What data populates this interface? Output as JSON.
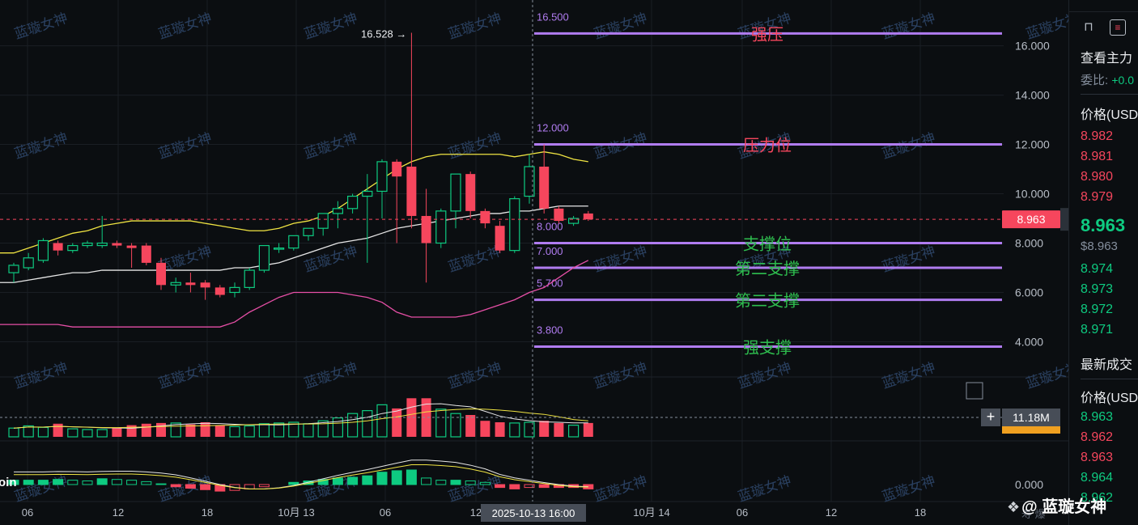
{
  "watermark": {
    "text": "蓝璇女神",
    "logo_text": "@ 蓝璇女神",
    "logo_icon": "hexagon-diamond-icon"
  },
  "legend_fragment": "oin",
  "footer_fragment": "寿 爆",
  "colors": {
    "up": "#0ecb81",
    "down": "#f6465d",
    "ma_fast": "#f0e442",
    "ma_mid": "#e6e6e6",
    "ma_slow": "#e64fa6",
    "level_line": "#b07cf0",
    "level_text_red": "#f6465d",
    "level_text_green": "#2ebd4e",
    "price_tag": "#f6465d"
  },
  "chart_data": [
    {
      "type": "candlestick",
      "title": "",
      "price_axis_ticks": [
        "16.000",
        "14.000",
        "12.000",
        "10.000",
        "8.000",
        "6.000",
        "4.000"
      ],
      "price_axis_values": [
        16,
        14,
        12,
        10,
        8,
        6,
        4
      ],
      "ylim": [
        2.9,
        17.2
      ],
      "time_axis_ticks": [
        "06",
        "12",
        "18",
        "10月 13",
        "06",
        "12",
        "10月 14",
        "06",
        "12",
        "18"
      ],
      "crosshair_label": "2025-10-13 16:00",
      "grid": true,
      "max_annotation": "16.528 →",
      "current_price": {
        "value": 8.963,
        "label": "8.963"
      },
      "candles": [
        {
          "o": 6.8,
          "h": 7.2,
          "l": 6.4,
          "c": 7.1
        },
        {
          "o": 7.0,
          "h": 7.6,
          "l": 6.9,
          "c": 7.4
        },
        {
          "o": 7.3,
          "h": 8.2,
          "l": 7.2,
          "c": 8.1
        },
        {
          "o": 8.0,
          "h": 8.1,
          "l": 7.5,
          "c": 7.7
        },
        {
          "o": 7.7,
          "h": 8.0,
          "l": 7.6,
          "c": 7.9
        },
        {
          "o": 7.9,
          "h": 8.1,
          "l": 7.8,
          "c": 8.0
        },
        {
          "o": 7.9,
          "h": 9.1,
          "l": 7.8,
          "c": 8.0
        },
        {
          "o": 8.0,
          "h": 8.1,
          "l": 7.8,
          "c": 7.9
        },
        {
          "o": 7.9,
          "h": 8.0,
          "l": 7.0,
          "c": 7.8
        },
        {
          "o": 7.9,
          "h": 8.0,
          "l": 7.1,
          "c": 7.2
        },
        {
          "o": 7.2,
          "h": 7.4,
          "l": 6.1,
          "c": 6.3
        },
        {
          "o": 6.3,
          "h": 6.6,
          "l": 6.0,
          "c": 6.4
        },
        {
          "o": 6.4,
          "h": 6.8,
          "l": 6.0,
          "c": 6.3
        },
        {
          "o": 6.4,
          "h": 6.5,
          "l": 5.7,
          "c": 6.2
        },
        {
          "o": 6.2,
          "h": 6.3,
          "l": 5.8,
          "c": 5.9
        },
        {
          "o": 6.0,
          "h": 6.4,
          "l": 5.8,
          "c": 6.2
        },
        {
          "o": 6.2,
          "h": 7.0,
          "l": 6.1,
          "c": 6.9
        },
        {
          "o": 6.9,
          "h": 7.9,
          "l": 6.8,
          "c": 7.9
        },
        {
          "o": 7.8,
          "h": 8.0,
          "l": 7.6,
          "c": 7.8
        },
        {
          "o": 7.8,
          "h": 8.3,
          "l": 7.7,
          "c": 8.3
        },
        {
          "o": 8.3,
          "h": 8.6,
          "l": 8.1,
          "c": 8.6
        },
        {
          "o": 8.6,
          "h": 9.2,
          "l": 8.3,
          "c": 9.2
        },
        {
          "o": 9.2,
          "h": 9.7,
          "l": 8.6,
          "c": 9.4
        },
        {
          "o": 9.4,
          "h": 10.0,
          "l": 9.2,
          "c": 9.9
        },
        {
          "o": 9.9,
          "h": 10.8,
          "l": 7.2,
          "c": 10.1
        },
        {
          "o": 10.1,
          "h": 11.4,
          "l": 9.0,
          "c": 11.3
        },
        {
          "o": 11.3,
          "h": 11.4,
          "l": 8.0,
          "c": 10.7
        },
        {
          "o": 11.1,
          "h": 16.528,
          "l": 8.6,
          "c": 9.1
        },
        {
          "o": 9.1,
          "h": 10.2,
          "l": 6.4,
          "c": 8.0
        },
        {
          "o": 8.0,
          "h": 9.4,
          "l": 7.8,
          "c": 9.3
        },
        {
          "o": 9.3,
          "h": 10.8,
          "l": 8.6,
          "c": 10.8
        },
        {
          "o": 10.8,
          "h": 10.9,
          "l": 9.0,
          "c": 9.3
        },
        {
          "o": 9.3,
          "h": 9.4,
          "l": 8.6,
          "c": 8.8
        },
        {
          "o": 8.7,
          "h": 8.9,
          "l": 7.6,
          "c": 7.7
        },
        {
          "o": 7.7,
          "h": 9.9,
          "l": 7.6,
          "c": 9.8
        },
        {
          "o": 9.9,
          "h": 11.6,
          "l": 9.6,
          "c": 11.1
        },
        {
          "o": 11.1,
          "h": 12.0,
          "l": 9.2,
          "c": 9.4
        },
        {
          "o": 9.4,
          "h": 9.5,
          "l": 8.8,
          "c": 8.9
        },
        {
          "o": 8.8,
          "h": 9.1,
          "l": 8.7,
          "c": 9.0
        },
        {
          "o": 9.2,
          "h": 9.3,
          "l": 8.9,
          "c": 8.963
        }
      ],
      "ma_fast": [
        7.6,
        7.8,
        8.0,
        8.2,
        8.4,
        8.5,
        8.7,
        8.8,
        8.9,
        8.9,
        8.9,
        8.9,
        8.9,
        8.8,
        8.7,
        8.6,
        8.5,
        8.5,
        8.6,
        8.8,
        8.9,
        9.1,
        9.4,
        9.8,
        10.2,
        10.6,
        11.0,
        11.3,
        11.5,
        11.6,
        11.6,
        11.6,
        11.6,
        11.6,
        11.5,
        11.6,
        11.7,
        11.6,
        11.4,
        11.3
      ],
      "ma_mid": [
        6.4,
        6.5,
        6.6,
        6.7,
        6.8,
        6.8,
        6.9,
        6.9,
        6.9,
        6.9,
        6.9,
        6.9,
        6.9,
        6.9,
        6.9,
        7.0,
        7.0,
        7.1,
        7.2,
        7.4,
        7.6,
        7.8,
        8.0,
        8.1,
        8.2,
        8.4,
        8.6,
        8.7,
        8.8,
        8.9,
        9.0,
        9.1,
        9.2,
        9.2,
        9.3,
        9.3,
        9.4,
        9.5,
        9.5,
        9.5
      ],
      "ma_slow": [
        4.7,
        4.7,
        4.7,
        4.7,
        4.6,
        4.6,
        4.6,
        4.6,
        4.6,
        4.6,
        4.6,
        4.6,
        4.6,
        4.6,
        4.6,
        4.8,
        5.2,
        5.5,
        5.8,
        6.0,
        6.0,
        6.0,
        6.0,
        5.9,
        5.8,
        5.6,
        5.2,
        5.0,
        5.0,
        5.0,
        5.0,
        5.1,
        5.3,
        5.5,
        5.7,
        6.0,
        6.2,
        6.6,
        7.0,
        7.3
      ],
      "volume_label": "11.18M",
      "volume": [
        1.2,
        1.5,
        1.3,
        1.8,
        1.1,
        1.0,
        1.0,
        1.2,
        1.6,
        1.8,
        1.9,
        1.9,
        1.7,
        2.0,
        1.6,
        1.4,
        1.5,
        1.8,
        1.9,
        2.0,
        1.8,
        2.2,
        2.6,
        3.2,
        3.6,
        4.4,
        3.9,
        5.3,
        5.3,
        3.8,
        3.2,
        3.0,
        2.2,
        2.0,
        1.9,
        2.0,
        2.2,
        1.9,
        1.6,
        1.9
      ],
      "macd_hist": [
        0.6,
        0.6,
        0.6,
        0.7,
        0.6,
        0.5,
        0.8,
        0.7,
        0.6,
        0.4,
        0.1,
        -0.3,
        -0.5,
        -0.7,
        -0.9,
        -0.8,
        -0.6,
        -0.3,
        0.0,
        0.3,
        0.5,
        0.7,
        0.9,
        1.0,
        1.2,
        1.7,
        1.9,
        2.0,
        0.9,
        0.6,
        0.6,
        0.5,
        0.3,
        -0.4,
        -0.6,
        -0.4,
        -0.4,
        -0.4,
        -0.4,
        -0.6
      ],
      "macd_tick": "0.000",
      "levels": [
        {
          "value": 16.5,
          "label": "16.500",
          "name": "强压",
          "tone": "red"
        },
        {
          "value": 12.0,
          "label": "12.000",
          "name": "压力位",
          "tone": "red"
        },
        {
          "value": 8.0,
          "label": "8.000",
          "name": "支撑位",
          "tone": "green"
        },
        {
          "value": 7.0,
          "label": "7.000",
          "name": "第二支撑",
          "tone": "green"
        },
        {
          "value": 5.7,
          "label": "5.700",
          "name": "第二支撑",
          "tone": "green"
        },
        {
          "value": 3.8,
          "label": "3.800",
          "name": "强支撑",
          "tone": "green"
        }
      ]
    }
  ],
  "orderbook": {
    "header_fragment": "查看主力",
    "ratio_label": "委比:",
    "ratio_value": "+0.0",
    "price_header": "价格(USD",
    "asks": [
      "8.982",
      "8.981",
      "8.980",
      "8.979"
    ],
    "last_price": "8.963",
    "last_price_usd": "$8.963",
    "bids": [
      "8.974",
      "8.973",
      "8.972",
      "8.971"
    ],
    "trades_header": "最新成交",
    "trades_price_header": "价格(USD",
    "trades": [
      {
        "p": "8.963",
        "side": "bid"
      },
      {
        "p": "8.962",
        "side": "ask"
      },
      {
        "p": "8.963",
        "side": "ask"
      },
      {
        "p": "8.964",
        "side": "bid"
      },
      {
        "p": "8.962",
        "side": "bid"
      }
    ]
  }
}
